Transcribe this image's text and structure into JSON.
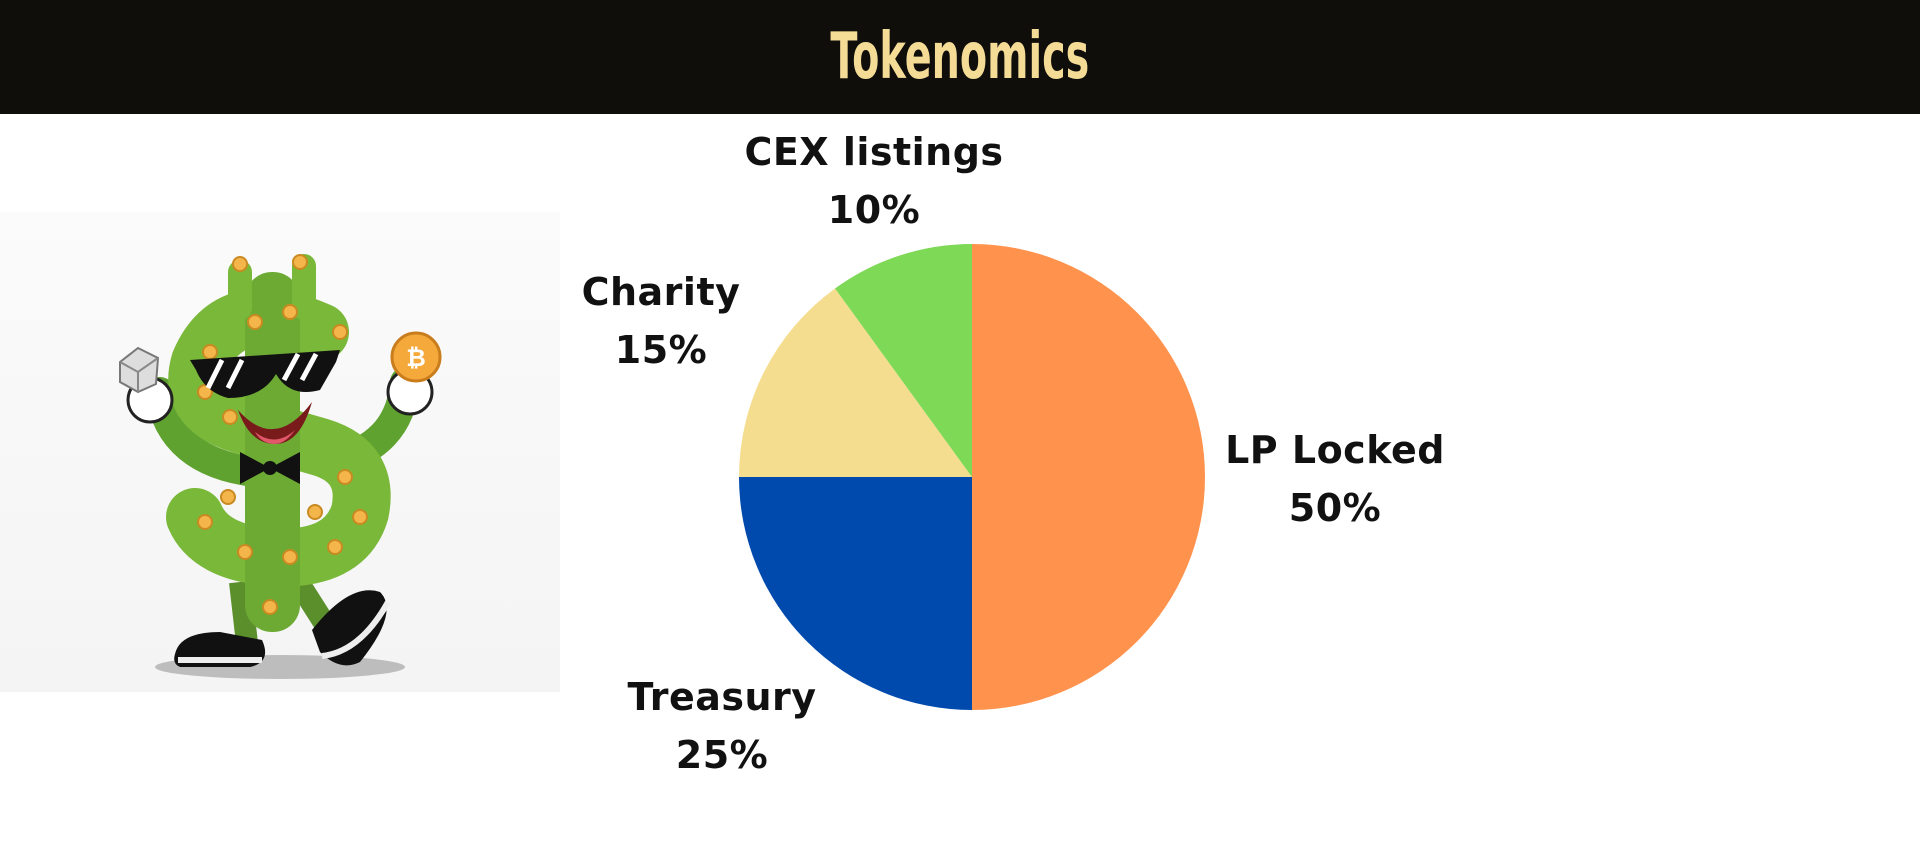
{
  "header": {
    "title": "Tokenomics",
    "background": "#100e0b",
    "title_color": "#f4dc96"
  },
  "mascot": {
    "icon": "cactus-mascot-icon"
  },
  "chart_data": {
    "type": "pie",
    "title": "Tokenomics",
    "start_angle_deg": 0,
    "direction": "clockwise",
    "slices": [
      {
        "label": "LP Locked",
        "value": 50,
        "value_label": "50%",
        "color": "#ff934d"
      },
      {
        "label": "Treasury",
        "value": 25,
        "value_label": "25%",
        "color": "#004aad"
      },
      {
        "label": "Charity",
        "value": 15,
        "value_label": "15%",
        "color": "#f5dd8f"
      },
      {
        "label": "CEX listings",
        "value": 10,
        "value_label": "10%",
        "color": "#7ed957"
      }
    ]
  }
}
